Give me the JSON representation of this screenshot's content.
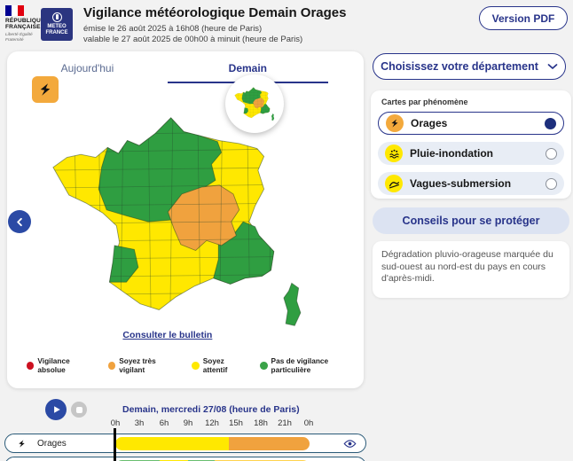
{
  "header": {
    "gov_name_line1": "RÉPUBLIQUE",
    "gov_name_line2": "FRANÇAISE",
    "gov_motto": "Liberté Égalité Fraternité",
    "meteo_logo_line1": "METEO",
    "meteo_logo_line2": "FRANCE",
    "title": "Vigilance météorologique Demain Orages",
    "subtitle1": "émise le 26 août 2025 à 16h08 (heure de Paris)",
    "subtitle2": "valable le 27 août 2025 de 00h00 à minuit (heure de Paris)",
    "pdf_button": "Version PDF"
  },
  "map_card": {
    "tabs": [
      {
        "label": "Aujourd'hui",
        "active": false
      },
      {
        "label": "Demain",
        "active": true
      }
    ],
    "hazard_icon": "lightning-icon",
    "bulletin_link": "Consulter le bulletin",
    "legend": [
      {
        "label": "Vigilance absolue",
        "color": "#cc1020"
      },
      {
        "label": "Soyez très vigilant",
        "color": "#f0a23e"
      },
      {
        "label": "Soyez attentif",
        "color": "#ffe800"
      },
      {
        "label": "Pas de vigilance particulière",
        "color": "#3aa348"
      }
    ],
    "map_colors": {
      "green": "#2f9e41",
      "yellow": "#ffe800",
      "orange": "#f0a23e"
    }
  },
  "sidebar": {
    "department_button": "Choisissez votre département",
    "department_icon": "chevron-down-icon",
    "phenomena_label": "Cartes par phénomène",
    "phenomena": [
      {
        "label": "Orages",
        "selected": true,
        "icon": "lightning-icon",
        "icon_bg": "#f3a93c"
      },
      {
        "label": "Pluie-inondation",
        "selected": false,
        "icon": "rain-flood-icon",
        "icon_bg": "#ffe800"
      },
      {
        "label": "Vagues-submersion",
        "selected": false,
        "icon": "wave-icon",
        "icon_bg": "#ffe800"
      }
    ],
    "advice_button": "Conseils pour se protéger",
    "description": "Dégradation pluvio-orageuse marquée du sud-ouest au nord-est du pays en cours d'après-midi."
  },
  "timeline": {
    "play_icon": "play-icon",
    "stop_icon": "stop-icon",
    "title": "Demain, mercredi 27/08 (heure de Paris)",
    "ticks": [
      "0h",
      "3h",
      "6h",
      "9h",
      "12h",
      "15h",
      "18h",
      "21h",
      "0h"
    ],
    "rows": [
      {
        "label": "Orages",
        "icon": "lightning-icon",
        "eye_icon": "eye-icon",
        "segments": [
          {
            "from": 0,
            "to": 14,
            "color": "#ffe800"
          },
          {
            "from": 14,
            "to": 24,
            "color": "#f0a23e"
          }
        ]
      },
      {
        "label": "",
        "segments": [
          {
            "from": 0,
            "to": 5.5,
            "color": "#69bf6f"
          },
          {
            "from": 5.5,
            "to": 9,
            "color": "#ffe800"
          },
          {
            "from": 9,
            "to": 12.3,
            "color": "#69bf6f"
          },
          {
            "from": 12.3,
            "to": 24,
            "color": "#ffd34d"
          }
        ]
      }
    ]
  },
  "colors": {
    "navy": "#28348a",
    "accent_blue": "#2b4aa5",
    "page_bg": "#f2f2f2"
  }
}
